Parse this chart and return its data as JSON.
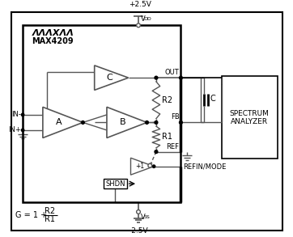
{
  "fig_width": 3.62,
  "fig_height": 2.93,
  "dpi": 100,
  "bg_color": "#ffffff",
  "line_color": "#555555",
  "thick_color": "#000000",
  "gain_formula": "G = 1 + ",
  "r2_label": "R2",
  "r1_label": "R1",
  "out_label": "OUT",
  "fb_label": "FB",
  "ref_label": "REF",
  "refin_label": "REFIN/MODE",
  "shdn_label": "SHDN",
  "amp_a_label": "A",
  "amp_b_label": "B",
  "amp_c_label": "C",
  "cap_label": "C",
  "in_minus": "IN-",
  "in_plus": "IN+",
  "supply_pos": "+2.5V",
  "supply_neg": "-2.5V",
  "vdd_label": "V",
  "vss_label": "V"
}
